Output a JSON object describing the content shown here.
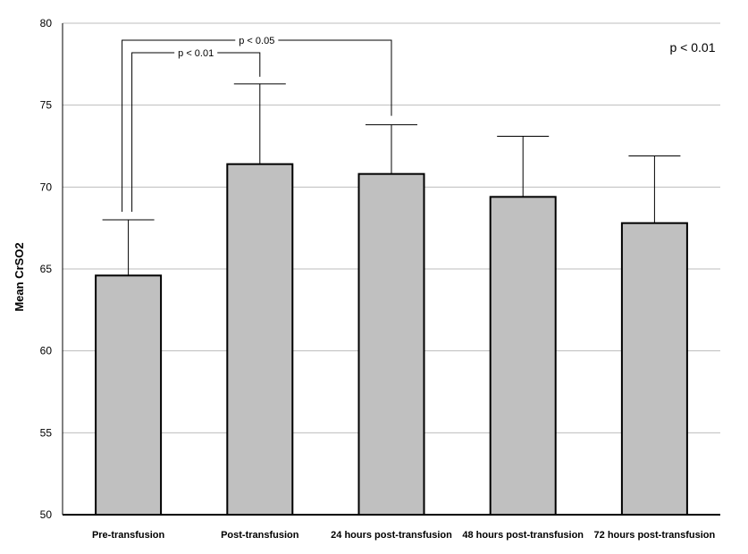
{
  "chart_data": {
    "type": "bar",
    "categories": [
      "Pre-transfusion",
      "Post-transfusion",
      "24 hours post-transfusion",
      "48 hours post-transfusion",
      "72 hours post-transfusion"
    ],
    "values": [
      64.6,
      71.4,
      70.8,
      69.4,
      67.8
    ],
    "errors": [
      3.4,
      4.9,
      3.0,
      3.7,
      4.1
    ],
    "ylabel": "Mean CrSO2",
    "ylim": [
      50,
      80
    ],
    "yticks": [
      50,
      55,
      60,
      65,
      70,
      75,
      80
    ],
    "grid": true,
    "bar_color": "#c0c0c0",
    "annotations": [
      {
        "text": "p < 0.01",
        "from": 0,
        "to": 1
      },
      {
        "text": "p < 0.05",
        "from": 0,
        "to": 2
      }
    ],
    "overall_text": "p < 0.01"
  }
}
